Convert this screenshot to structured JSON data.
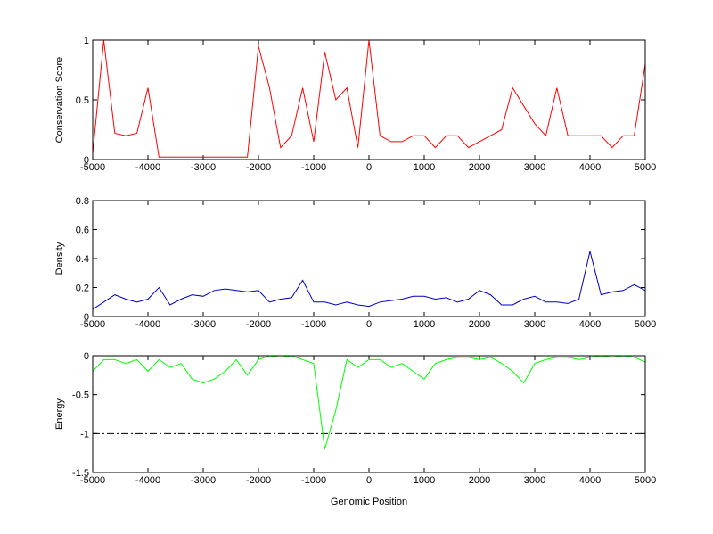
{
  "chart_data": [
    {
      "type": "line",
      "ylabel": "Conservation Score",
      "color": "#ff0000",
      "x": [
        -5000,
        -4800,
        -4600,
        -4400,
        -4200,
        -4000,
        -3800,
        -3600,
        -3400,
        -3200,
        -3000,
        -2800,
        -2600,
        -2400,
        -2200,
        -2000,
        -1800,
        -1600,
        -1400,
        -1200,
        -1000,
        -800,
        -600,
        -400,
        -200,
        0,
        200,
        400,
        600,
        800,
        1000,
        1200,
        1400,
        1600,
        1800,
        2000,
        2200,
        2400,
        2600,
        2800,
        3000,
        3200,
        3400,
        3600,
        3800,
        4000,
        4200,
        4400,
        4600,
        4800,
        5000
      ],
      "values": [
        0.05,
        1,
        0.22,
        0.2,
        0.22,
        0.6,
        0.02,
        0.02,
        0.02,
        0.02,
        0.02,
        0.02,
        0.02,
        0.02,
        0.02,
        0.95,
        0.6,
        0.1,
        0.2,
        0.6,
        0.15,
        0.9,
        0.5,
        0.6,
        0.1,
        1,
        0.2,
        0.15,
        0.15,
        0.2,
        0.2,
        0.1,
        0.2,
        0.2,
        0.1,
        0.15,
        0.2,
        0.25,
        0.6,
        0.45,
        0.3,
        0.2,
        0.6,
        0.2,
        0.2,
        0.2,
        0.2,
        0.1,
        0.2,
        0.2,
        0.8
      ],
      "xlim": [
        -5000,
        5000
      ],
      "xticks": [
        -5000,
        -4000,
        -3000,
        -2000,
        -1000,
        0,
        1000,
        2000,
        3000,
        4000,
        5000
      ],
      "ylim": [
        0,
        1
      ],
      "yticks": [
        0,
        0.5,
        1
      ]
    },
    {
      "type": "line",
      "ylabel": "Density",
      "color": "#0000c0",
      "x": [
        -5000,
        -4800,
        -4600,
        -4400,
        -4200,
        -4000,
        -3800,
        -3600,
        -3400,
        -3200,
        -3000,
        -2800,
        -2600,
        -2400,
        -2200,
        -2000,
        -1800,
        -1600,
        -1400,
        -1200,
        -1000,
        -800,
        -600,
        -400,
        -200,
        0,
        200,
        400,
        600,
        800,
        1000,
        1200,
        1400,
        1600,
        1800,
        2000,
        2200,
        2400,
        2600,
        2800,
        3000,
        3200,
        3400,
        3600,
        3800,
        4000,
        4200,
        4400,
        4600,
        4800,
        5000
      ],
      "values": [
        0.05,
        0.1,
        0.15,
        0.12,
        0.1,
        0.12,
        0.2,
        0.08,
        0.12,
        0.15,
        0.14,
        0.18,
        0.19,
        0.18,
        0.17,
        0.18,
        0.1,
        0.12,
        0.13,
        0.25,
        0.1,
        0.1,
        0.08,
        0.1,
        0.08,
        0.07,
        0.1,
        0.11,
        0.12,
        0.14,
        0.14,
        0.12,
        0.13,
        0.1,
        0.12,
        0.18,
        0.15,
        0.08,
        0.08,
        0.12,
        0.14,
        0.1,
        0.1,
        0.09,
        0.12,
        0.45,
        0.15,
        0.17,
        0.18,
        0.22,
        0.18
      ],
      "xlim": [
        -5000,
        5000
      ],
      "xticks": [
        -5000,
        -4000,
        -3000,
        -2000,
        -1000,
        0,
        1000,
        2000,
        3000,
        4000,
        5000
      ],
      "ylim": [
        0,
        0.8
      ],
      "yticks": [
        0,
        0.2,
        0.4,
        0.6,
        0.8
      ]
    },
    {
      "type": "line",
      "ylabel": "Energy",
      "xlabel": "Genomic Position",
      "color": "#00ff00",
      "x": [
        -5000,
        -4800,
        -4600,
        -4400,
        -4200,
        -4000,
        -3800,
        -3600,
        -3400,
        -3200,
        -3000,
        -2800,
        -2600,
        -2400,
        -2200,
        -2000,
        -1800,
        -1600,
        -1400,
        -1200,
        -1000,
        -800,
        -600,
        -400,
        -200,
        0,
        200,
        400,
        600,
        800,
        1000,
        1200,
        1400,
        1600,
        1800,
        2000,
        2200,
        2400,
        2600,
        2800,
        3000,
        3200,
        3400,
        3600,
        3800,
        4000,
        4200,
        4400,
        4600,
        4800,
        5000
      ],
      "values": [
        -0.2,
        -0.05,
        -0.05,
        -0.1,
        -0.05,
        -0.2,
        -0.05,
        -0.15,
        -0.1,
        -0.3,
        -0.35,
        -0.3,
        -0.2,
        -0.05,
        -0.25,
        -0.05,
        0,
        -0.02,
        0,
        -0.05,
        -0.1,
        -1.2,
        -0.7,
        -0.05,
        -0.15,
        -0.05,
        -0.05,
        -0.15,
        -0.1,
        -0.2,
        -0.3,
        -0.1,
        -0.05,
        -0.02,
        -0.02,
        -0.05,
        -0.02,
        -0.1,
        -0.2,
        -0.35,
        -0.1,
        -0.05,
        -0.02,
        -0.02,
        -0.05,
        -0.02,
        0,
        -0.02,
        0,
        -0.02,
        -0.08
      ],
      "xlim": [
        -5000,
        5000
      ],
      "xticks": [
        -5000,
        -4000,
        -3000,
        -2000,
        -1000,
        0,
        1000,
        2000,
        3000,
        4000,
        5000
      ],
      "ylim": [
        -1.5,
        0
      ],
      "yticks": [
        -1.5,
        -1,
        -0.5,
        0
      ],
      "hline": -1,
      "hline_style": "dash-dot"
    }
  ]
}
